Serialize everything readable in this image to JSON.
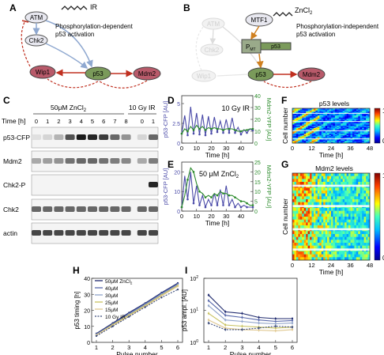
{
  "panels": {
    "A": {
      "letter": "A",
      "nodes": {
        "atm": "ATM",
        "chk2": "Chk2",
        "wip1": "Wip1",
        "p53": "p53",
        "mdm2": "Mdm2"
      },
      "ir": "IR",
      "caption_1": "Phosphorylation-dependent",
      "caption_2": "p53 activation"
    },
    "B": {
      "letter": "B",
      "nodes": {
        "atm": "ATM",
        "chk2": "Chk2",
        "wip1": "Wip1",
        "mtf1": "MTF1",
        "p53": "p53",
        "mdm2": "Mdm2",
        "pmt": "P",
        "pmt_sub": "MT"
      },
      "zn": "ZnCl",
      "zn_sub": "2",
      "caption_1": "Phosphorylation-independent",
      "caption_2": "p53 activation"
    },
    "C": {
      "letter": "C",
      "header_zn": "50μM ZnCl",
      "header_zn_sub": "2",
      "header_ir": "10 Gy IR",
      "time_label": "Time [h]",
      "time_points": [
        "0",
        "1",
        "2",
        "3",
        "4",
        "5",
        "6",
        "7",
        "8",
        "0",
        "1"
      ],
      "rows": [
        "p53-CFP",
        "Mdm2",
        "Chk2-P",
        "Chk2",
        "actin"
      ],
      "band_intensity": {
        "p53-CFP": [
          0.05,
          0.1,
          0.25,
          0.7,
          0.95,
          0.9,
          0.8,
          0.6,
          0.4,
          0.1,
          0.6
        ],
        "Mdm2": [
          0.3,
          0.35,
          0.4,
          0.55,
          0.6,
          0.6,
          0.55,
          0.5,
          0.45,
          0.3,
          0.5
        ],
        "Chk2-P": [
          0,
          0,
          0,
          0,
          0,
          0,
          0,
          0,
          0,
          0,
          0.9
        ],
        "Chk2": [
          0.6,
          0.6,
          0.6,
          0.6,
          0.6,
          0.6,
          0.6,
          0.6,
          0.6,
          0.6,
          0.6
        ],
        "actin": [
          0.75,
          0.75,
          0.75,
          0.75,
          0.75,
          0.75,
          0.75,
          0.75,
          0.75,
          0.75,
          0.75
        ]
      }
    },
    "D": {
      "letter": "D",
      "annotation": "10 Gy IR",
      "ylabel_left": "p53-CFP [AU]",
      "ylabel_right": "Mdm2-YFP [AU]",
      "xlabel": "Time [h]",
      "xticks": [
        "0",
        "10",
        "20",
        "30",
        "40"
      ],
      "yticks_left": [
        "0",
        "2.5",
        "5"
      ],
      "yticks_right": [
        "0",
        "10",
        "20",
        "30",
        "40"
      ]
    },
    "E": {
      "letter": "E",
      "annotation": "50 μM ZnCl",
      "annotation_sub": "2",
      "ylabel_left": "p53-CFP [AU]",
      "ylabel_right": "Mdm2-YFP [AU]",
      "xlabel": "Time [h]",
      "xticks": [
        "0",
        "10",
        "20",
        "30",
        "40"
      ],
      "yticks_left": [
        "0",
        "10",
        "20"
      ],
      "yticks_right": [
        "0",
        "5",
        "10",
        "15",
        "20",
        "25"
      ]
    },
    "F": {
      "letter": "F",
      "title": "p53 levels",
      "ylabel": "Cell number",
      "xlabel": "Time [h]",
      "xticks": [
        "0",
        "12",
        "24",
        "36",
        "48"
      ],
      "colorbar_top": "1",
      "colorbar_bottom": "0"
    },
    "G": {
      "letter": "G",
      "title": "Mdm2 levels",
      "ylabel": "Cell number",
      "xlabel": "Time [h]",
      "xticks": [
        "0",
        "12",
        "24",
        "36",
        "48"
      ],
      "colorbar_top": "1",
      "colorbar_bottom": "0"
    },
    "H": {
      "letter": "H",
      "ylabel": "p53 timing [h]",
      "xlabel": "Pulse number",
      "xticks": [
        "1",
        "2",
        "3",
        "4",
        "5",
        "6"
      ],
      "yticks": [
        "0",
        "10",
        "20",
        "30",
        "40"
      ]
    },
    "I": {
      "letter": "I",
      "ylabel": "p53 ampl. [AU]",
      "xlabel": "Pulse number",
      "xticks": [
        "1",
        "2",
        "3",
        "4",
        "5",
        "6"
      ],
      "yticks": [
        "10",
        "10",
        "10"
      ],
      "yticks_sup": [
        "0",
        "1",
        "2"
      ]
    }
  },
  "legend": [
    {
      "label": "50μM ZnCl",
      "sub": "2",
      "color": "#1f2a6e",
      "dash": false
    },
    {
      "label": "40μM",
      "sub": "",
      "color": "#5566aa",
      "dash": false
    },
    {
      "label": "30μM",
      "sub": "",
      "color": "#8fa3c9",
      "dash": false
    },
    {
      "label": "25μM",
      "sub": "",
      "color": "#c8c260",
      "dash": false
    },
    {
      "label": "15μM",
      "sub": "",
      "color": "#e0c890",
      "dash": false
    },
    {
      "label": "10 Gy IR",
      "sub": "",
      "color": "#3a4a7a",
      "dash": true
    }
  ],
  "colors": {
    "p53": "#4a4aa8",
    "mdm2": "#2a8a2a",
    "wip1": "#b85a6a",
    "mdm2_node": "#b85a6a",
    "p53_node": "#7a9a5a",
    "arrow_red": "#c03020",
    "arrow_blue": "#8fa8d0",
    "arrow_orange": "#d08020"
  },
  "chart_data": [
    {
      "type": "line",
      "panel": "D",
      "x": [
        0,
        2,
        4,
        6,
        8,
        10,
        12,
        14,
        16,
        18,
        20,
        22,
        24,
        26,
        28,
        30,
        32,
        34,
        36,
        38,
        40,
        42,
        44,
        46,
        48
      ],
      "series": [
        {
          "axis": "left",
          "values": [
            1.2,
            3.5,
            1.0,
            4.6,
            1.2,
            3.8,
            1.1,
            3.6,
            1.0,
            3.4,
            1.2,
            3.3,
            1.4,
            2.8,
            1.3,
            3.0,
            1.3,
            3.2,
            1.3,
            2.0,
            1.1,
            1.7,
            1.3,
            1.8,
            1.6
          ]
        },
        {
          "axis": "right",
          "values": [
            8,
            12,
            10,
            14,
            11,
            15,
            12,
            14,
            11,
            13,
            12,
            13,
            12,
            12,
            11,
            12,
            12,
            12,
            11,
            10,
            10,
            11,
            11,
            12,
            12
          ]
        }
      ],
      "xlim": [
        0,
        48
      ],
      "ylim_left": [
        0,
        6
      ],
      "ylim_right": [
        0,
        40
      ]
    },
    {
      "type": "line",
      "panel": "E",
      "x": [
        0,
        2,
        4,
        6,
        8,
        10,
        12,
        14,
        16,
        18,
        20,
        22,
        24,
        26,
        28,
        30,
        32,
        34,
        36,
        38,
        40,
        42,
        44,
        46,
        48
      ],
      "series": [
        {
          "axis": "left",
          "values": [
            2,
            18,
            6,
            20,
            4,
            13,
            3,
            8,
            2,
            6,
            3,
            9,
            3,
            11,
            3,
            13,
            3,
            6,
            2,
            4,
            2,
            3,
            2,
            2,
            2
          ]
        },
        {
          "axis": "right",
          "values": [
            2,
            8,
            16,
            22,
            20,
            14,
            10,
            9,
            7,
            8,
            7,
            9,
            8,
            10,
            9,
            9,
            8,
            8,
            7,
            6,
            5,
            5,
            4,
            3,
            3
          ]
        }
      ],
      "xlim": [
        0,
        48
      ],
      "ylim_left": [
        0,
        25
      ],
      "ylim_right": [
        0,
        25
      ]
    },
    {
      "type": "line",
      "panel": "H",
      "x": [
        1,
        2,
        3,
        4,
        5,
        6
      ],
      "series": [
        {
          "name": "50μM ZnCl2",
          "values": [
            5.5,
            12,
            18.5,
            24.5,
            31,
            37
          ]
        },
        {
          "name": "40μM",
          "values": [
            5,
            11.5,
            18,
            24,
            30.5,
            36.5
          ]
        },
        {
          "name": "30μM",
          "values": [
            5,
            11,
            17.5,
            23.5,
            30,
            36
          ]
        },
        {
          "name": "25μM",
          "values": [
            4.5,
            11,
            17,
            23,
            29.5,
            35.5
          ]
        },
        {
          "name": "15μM",
          "values": [
            4.5,
            10.5,
            16.5,
            22.5,
            29,
            35
          ]
        },
        {
          "name": "10 Gy IR",
          "values": [
            4,
            10,
            16,
            22,
            28,
            33
          ]
        }
      ],
      "ylim": [
        0,
        40
      ]
    },
    {
      "type": "line",
      "panel": "I",
      "x": [
        1,
        2,
        3,
        4,
        5,
        6
      ],
      "series": [
        {
          "name": "50μM ZnCl2",
          "values": [
            30,
            9,
            8,
            6,
            5.5,
            5.5
          ]
        },
        {
          "name": "40μM",
          "values": [
            20,
            7,
            6,
            5,
            4.5,
            4.8
          ]
        },
        {
          "name": "30μM",
          "values": [
            14,
            5,
            4.5,
            4,
            3.8,
            4
          ]
        },
        {
          "name": "25μM",
          "values": [
            8,
            3.5,
            3.2,
            3,
            2.8,
            3
          ]
        },
        {
          "name": "15μM",
          "values": [
            5,
            2.8,
            2.5,
            2.4,
            2.3,
            2.5
          ]
        },
        {
          "name": "10 Gy IR",
          "values": [
            4,
            2.5,
            2.5,
            2.8,
            3.2,
            3
          ]
        }
      ],
      "ylim": [
        1,
        100
      ],
      "log_y": true
    }
  ]
}
